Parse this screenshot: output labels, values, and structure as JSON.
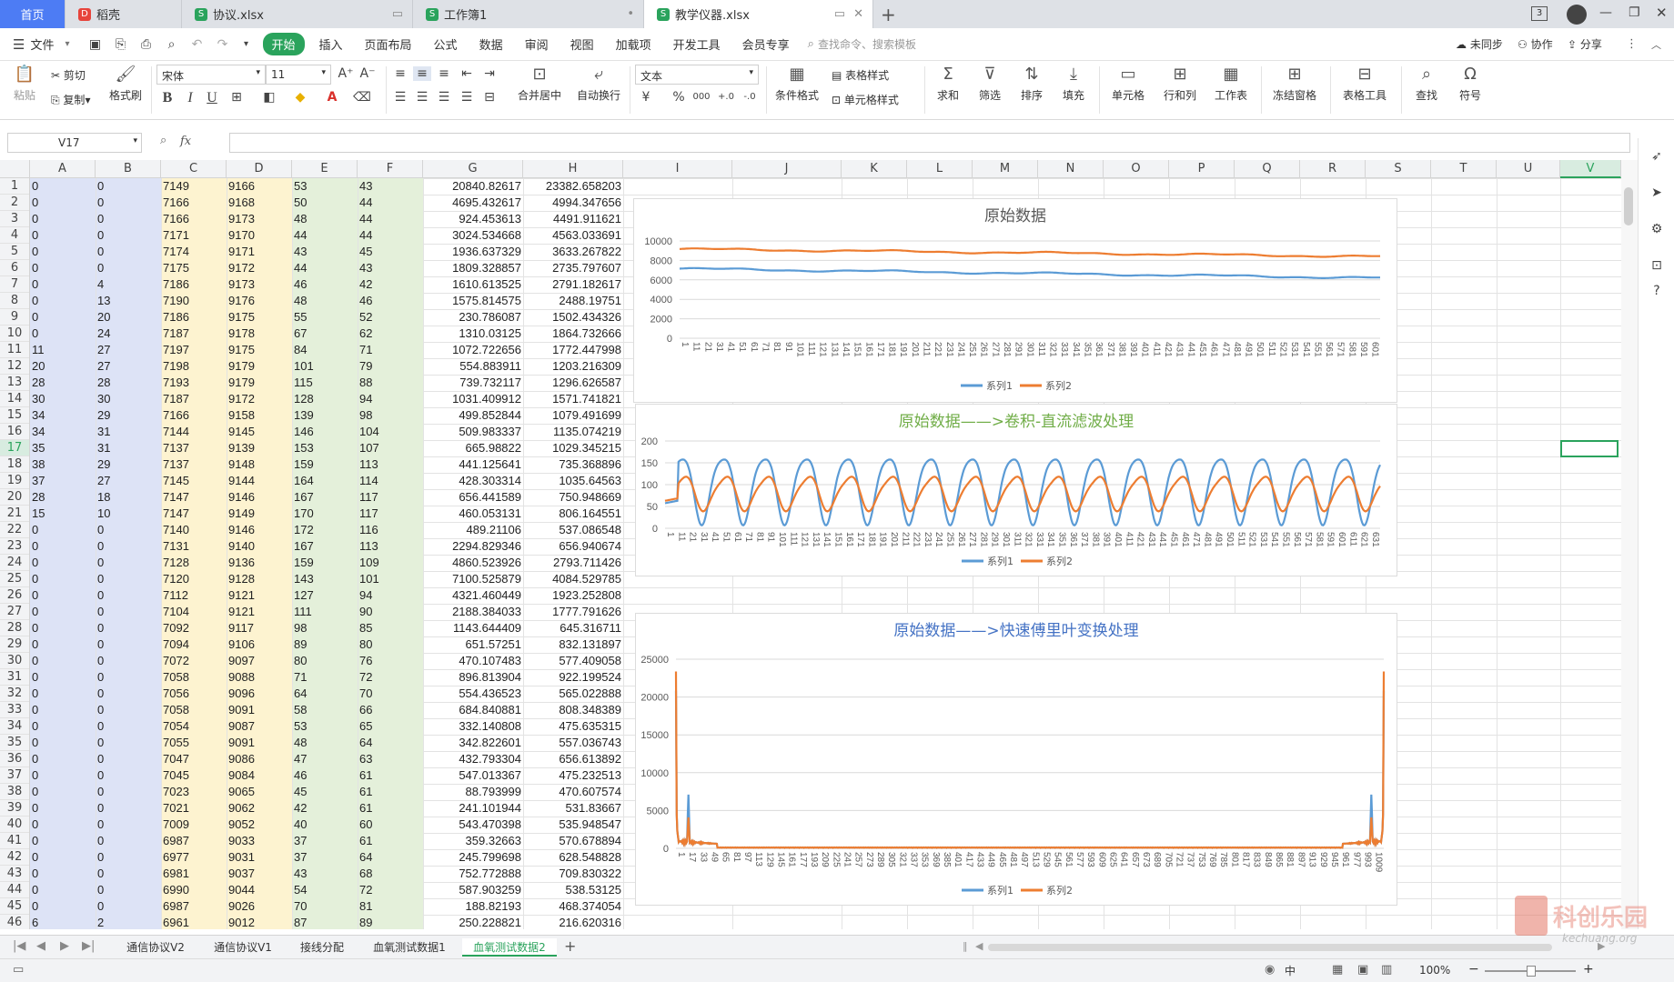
{
  "tabs": {
    "home": "首页",
    "docs": [
      {
        "name": "稻壳",
        "color": "#e7443b",
        "icon": "D"
      },
      {
        "name": "协议.xlsx",
        "color": "#2aa35c",
        "icon": "S"
      },
      {
        "name": "工作簿1",
        "color": "#2aa35c",
        "icon": "S"
      },
      {
        "name": "教学仪器.xlsx",
        "color": "#2aa35c",
        "icon": "S"
      }
    ],
    "add_label": "+",
    "window_badge": "3"
  },
  "menu": {
    "file": "文件",
    "items": [
      "开始",
      "插入",
      "页面布局",
      "公式",
      "数据",
      "审阅",
      "视图",
      "加载项",
      "开发工具",
      "会员专享"
    ],
    "search": "查找命令、搜索模板",
    "sync": "未同步",
    "collab": "协作",
    "share": "分享"
  },
  "ribbon": {
    "paste": "粘贴",
    "cut": "剪切",
    "copy": "复制",
    "format_painter": "格式刷",
    "font_name": "宋体",
    "font_size": "11",
    "merge": "合并居中",
    "wrap": "自动换行",
    "number_format": "文本",
    "cond_format": "条件格式",
    "table_style": "表格样式",
    "cell_style": "单元格样式",
    "sum": "求和",
    "filter": "筛选",
    "sort": "排序",
    "fill": "填充",
    "cell": "单元格",
    "rowcol": "行和列",
    "sheet": "工作表",
    "freeze": "冻结窗格",
    "tools": "表格工具",
    "find": "查找",
    "symbol": "符号",
    "bold": "B",
    "italic": "I",
    "underline": "U",
    "currency": "¥",
    "percent": "%",
    "thousands": "000",
    "inc_dec": "+.0",
    "dec_dec": "-.0"
  },
  "formula": {
    "cell_ref": "V17",
    "fx": "fx",
    "value": ""
  },
  "columns": [
    "A",
    "B",
    "C",
    "D",
    "E",
    "F",
    "G",
    "H",
    "I",
    "J",
    "K",
    "L",
    "M",
    "N",
    "O",
    "P",
    "Q",
    "R",
    "S",
    "T",
    "U",
    "V"
  ],
  "band_colors": {
    "ab": "#dde3f6",
    "cd": "#fdf3d0",
    "ef": "#e4f0da"
  },
  "rows": [
    [
      "0",
      "0",
      "7149",
      "9166",
      "53",
      "43",
      "20840.82617",
      "23382.658203"
    ],
    [
      "0",
      "0",
      "7166",
      "9168",
      "50",
      "44",
      "4695.432617",
      "4994.347656"
    ],
    [
      "0",
      "0",
      "7166",
      "9173",
      "48",
      "44",
      "924.453613",
      "4491.911621"
    ],
    [
      "0",
      "0",
      "7171",
      "9170",
      "44",
      "44",
      "3024.534668",
      "4563.033691"
    ],
    [
      "0",
      "0",
      "7174",
      "9171",
      "43",
      "45",
      "1936.637329",
      "3633.267822"
    ],
    [
      "0",
      "0",
      "7175",
      "9172",
      "44",
      "43",
      "1809.328857",
      "2735.797607"
    ],
    [
      "0",
      "4",
      "7186",
      "9173",
      "46",
      "42",
      "1610.613525",
      "2791.182617"
    ],
    [
      "0",
      "13",
      "7190",
      "9176",
      "48",
      "46",
      "1575.814575",
      "2488.19751"
    ],
    [
      "0",
      "20",
      "7186",
      "9175",
      "55",
      "52",
      "230.786087",
      "1502.434326"
    ],
    [
      "0",
      "24",
      "7187",
      "9178",
      "67",
      "62",
      "1310.03125",
      "1864.732666"
    ],
    [
      "11",
      "27",
      "7197",
      "9175",
      "84",
      "71",
      "1072.722656",
      "1772.447998"
    ],
    [
      "20",
      "27",
      "7198",
      "9179",
      "101",
      "79",
      "554.883911",
      "1203.216309"
    ],
    [
      "28",
      "28",
      "7193",
      "9179",
      "115",
      "88",
      "739.732117",
      "1296.626587"
    ],
    [
      "30",
      "30",
      "7187",
      "9172",
      "128",
      "94",
      "1031.409912",
      "1571.741821"
    ],
    [
      "34",
      "29",
      "7166",
      "9158",
      "139",
      "98",
      "499.852844",
      "1079.491699"
    ],
    [
      "34",
      "31",
      "7144",
      "9145",
      "146",
      "104",
      "509.983337",
      "1135.074219"
    ],
    [
      "35",
      "31",
      "7137",
      "9139",
      "153",
      "107",
      "665.98822",
      "1029.345215"
    ],
    [
      "38",
      "29",
      "7137",
      "9148",
      "159",
      "113",
      "441.125641",
      "735.368896"
    ],
    [
      "37",
      "27",
      "7145",
      "9144",
      "164",
      "114",
      "428.303314",
      "1035.64563"
    ],
    [
      "28",
      "18",
      "7147",
      "9146",
      "167",
      "117",
      "656.441589",
      "750.948669"
    ],
    [
      "15",
      "10",
      "7147",
      "9149",
      "170",
      "117",
      "460.053131",
      "806.164551"
    ],
    [
      "0",
      "0",
      "7140",
      "9146",
      "172",
      "116",
      "489.21106",
      "537.086548"
    ],
    [
      "0",
      "0",
      "7131",
      "9140",
      "167",
      "113",
      "2294.829346",
      "656.940674"
    ],
    [
      "0",
      "0",
      "7128",
      "9136",
      "159",
      "109",
      "4860.523926",
      "2793.711426"
    ],
    [
      "0",
      "0",
      "7120",
      "9128",
      "143",
      "101",
      "7100.525879",
      "4084.529785"
    ],
    [
      "0",
      "0",
      "7112",
      "9121",
      "127",
      "94",
      "4321.460449",
      "1923.252808"
    ],
    [
      "0",
      "0",
      "7104",
      "9121",
      "111",
      "90",
      "2188.384033",
      "1777.791626"
    ],
    [
      "0",
      "0",
      "7092",
      "9117",
      "98",
      "85",
      "1143.644409",
      "645.316711"
    ],
    [
      "0",
      "0",
      "7094",
      "9106",
      "89",
      "80",
      "651.57251",
      "832.131897"
    ],
    [
      "0",
      "0",
      "7072",
      "9097",
      "80",
      "76",
      "470.107483",
      "577.409058"
    ],
    [
      "0",
      "0",
      "7058",
      "9088",
      "71",
      "72",
      "896.813904",
      "922.199524"
    ],
    [
      "0",
      "0",
      "7056",
      "9096",
      "64",
      "70",
      "554.436523",
      "565.022888"
    ],
    [
      "0",
      "0",
      "7058",
      "9091",
      "58",
      "66",
      "684.840881",
      "808.348389"
    ],
    [
      "0",
      "0",
      "7054",
      "9087",
      "53",
      "65",
      "332.140808",
      "475.635315"
    ],
    [
      "0",
      "0",
      "7055",
      "9091",
      "48",
      "64",
      "342.822601",
      "557.036743"
    ],
    [
      "0",
      "0",
      "7047",
      "9086",
      "47",
      "63",
      "432.793304",
      "656.613892"
    ],
    [
      "0",
      "0",
      "7045",
      "9084",
      "46",
      "61",
      "547.013367",
      "475.232513"
    ],
    [
      "0",
      "0",
      "7023",
      "9065",
      "45",
      "61",
      "88.793999",
      "470.607574"
    ],
    [
      "0",
      "0",
      "7021",
      "9062",
      "42",
      "61",
      "241.101944",
      "531.83667"
    ],
    [
      "0",
      "0",
      "7009",
      "9052",
      "40",
      "60",
      "543.470398",
      "535.948547"
    ],
    [
      "0",
      "0",
      "6987",
      "9033",
      "37",
      "61",
      "359.32663",
      "570.678894"
    ],
    [
      "0",
      "0",
      "6977",
      "9031",
      "37",
      "64",
      "245.799698",
      "628.548828"
    ],
    [
      "0",
      "0",
      "6981",
      "9037",
      "43",
      "68",
      "752.772888",
      "709.830322"
    ],
    [
      "0",
      "0",
      "6990",
      "9044",
      "54",
      "72",
      "587.903259",
      "538.53125"
    ],
    [
      "0",
      "0",
      "6987",
      "9026",
      "70",
      "81",
      "188.82193",
      "468.374054"
    ],
    [
      "6",
      "2",
      "6961",
      "9012",
      "87",
      "89",
      "250.228821",
      "216.620316"
    ]
  ],
  "charts": [
    {
      "type": "line",
      "title": "原始数据",
      "title_color": "#595959",
      "ylim": [
        0,
        10000
      ],
      "yticks": [
        0,
        2000,
        4000,
        6000,
        8000,
        10000
      ],
      "x_start": 1,
      "x_step": 10,
      "x_count": 61,
      "n": 610,
      "legend": [
        "系列1",
        "系列2"
      ],
      "series_colors": [
        "#5b9bd5",
        "#ed7d31"
      ],
      "series": [
        {
          "name": "系列1",
          "start": 7150,
          "end": 6200
        },
        {
          "name": "系列2",
          "start": 9170,
          "end": 8400
        }
      ]
    },
    {
      "type": "line",
      "title": "原始数据——>卷积-直流滤波处理",
      "title_color": "#70ad47",
      "ylim": [
        0,
        200
      ],
      "yticks": [
        0,
        50,
        100,
        150,
        200
      ],
      "x_start": 1,
      "x_step": 10,
      "x_count": 64,
      "n": 640,
      "legend": [
        "系列1",
        "系列2"
      ],
      "series_colors": [
        "#5b9bd5",
        "#ed7d31"
      ],
      "series": [
        {
          "name": "系列1",
          "mid": 95,
          "amp": 75,
          "period": 37
        },
        {
          "name": "系列2",
          "mid": 82,
          "amp": 38,
          "period": 37
        }
      ]
    },
    {
      "type": "line",
      "title": "原始数据——>快速傅里叶变换处理",
      "title_color": "#4472c4",
      "ylim": [
        0,
        25000
      ],
      "yticks": [
        0,
        5000,
        10000,
        15000,
        20000,
        25000
      ],
      "x_start": 1,
      "x_step": 16,
      "x_count": 64,
      "n": 1024,
      "legend": [
        "系列1",
        "系列2"
      ],
      "series_colors": [
        "#5b9bd5",
        "#ed7d31"
      ],
      "series": [
        {
          "name": "系列1",
          "dc": 20840,
          "spike": 7100
        },
        {
          "name": "系列2",
          "dc": 23382,
          "spike": 4084
        }
      ]
    }
  ],
  "sheets": [
    "通信协议V2",
    "通信协议V1",
    "接线分配",
    "血氧测试数据1",
    "血氧测试数据2"
  ],
  "active_sheet": "血氧测试数据2",
  "status": {
    "input_mode": "中",
    "zoom": "100%",
    "zoom_minus": "−",
    "zoom_plus": "+"
  },
  "watermark": {
    "text": "科创乐园",
    "url": "kechuang.org"
  }
}
